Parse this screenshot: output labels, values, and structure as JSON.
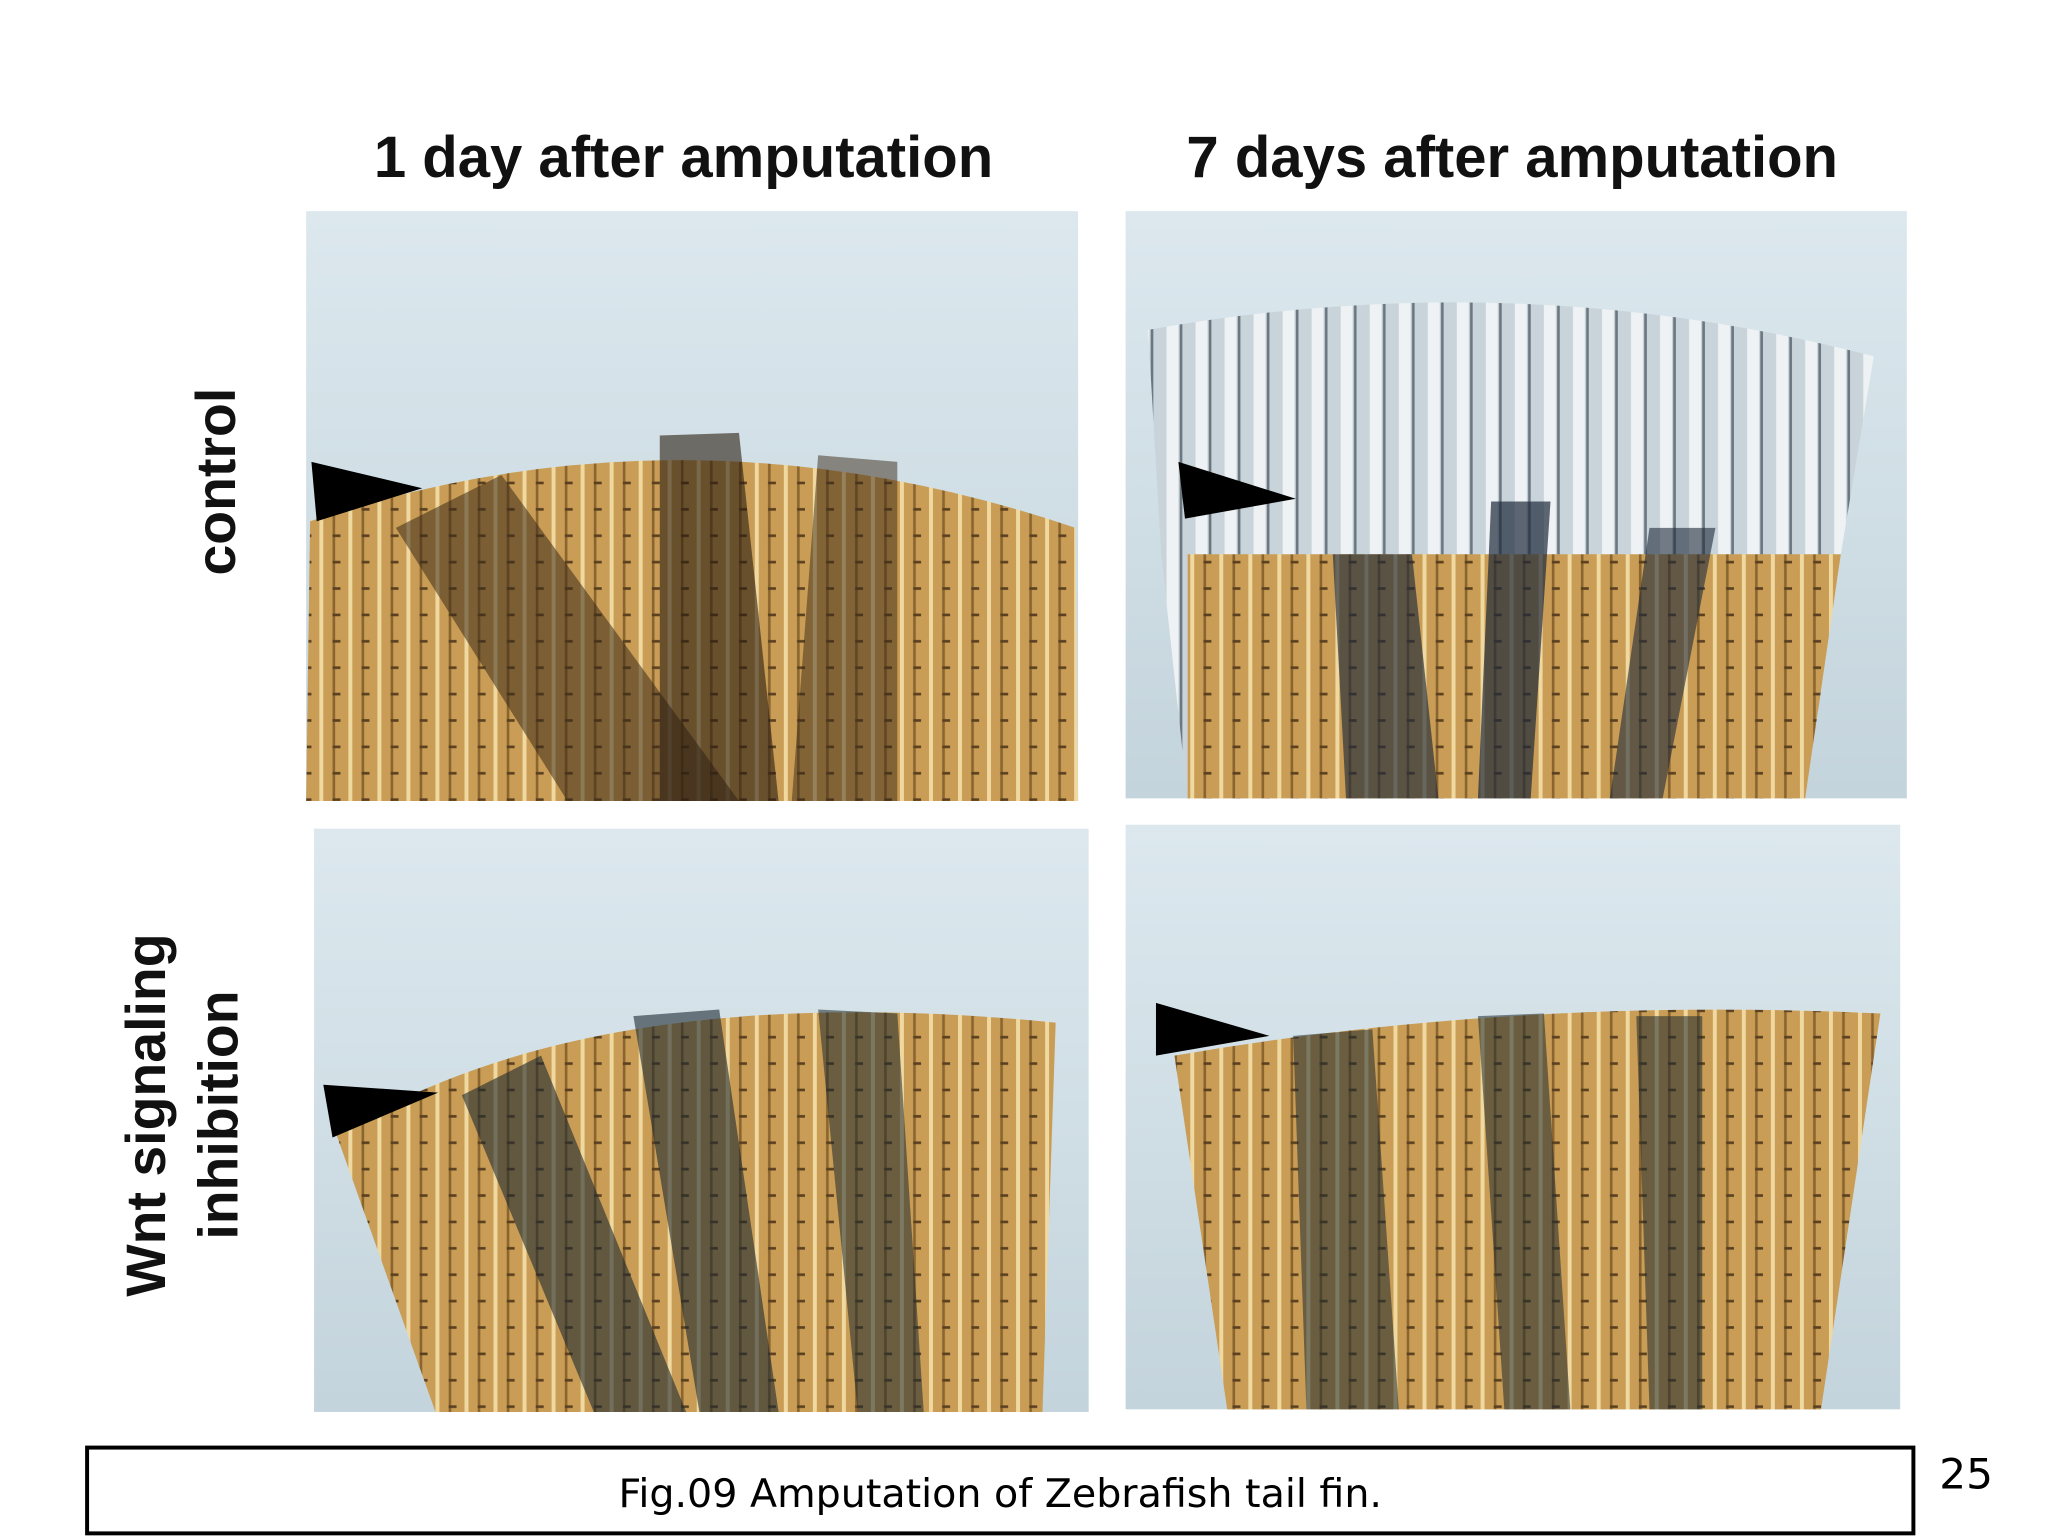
{
  "figure": {
    "column_headers": [
      "1 day after amputation",
      "7 days after amputation"
    ],
    "row_labels": [
      {
        "lines": [
          "control"
        ]
      },
      {
        "lines": [
          "Wnt signaling",
          "inhibition"
        ]
      }
    ]
  },
  "caption": "Fig.09 Amputation of Zebrafish tail fin.",
  "page_number": "25"
}
